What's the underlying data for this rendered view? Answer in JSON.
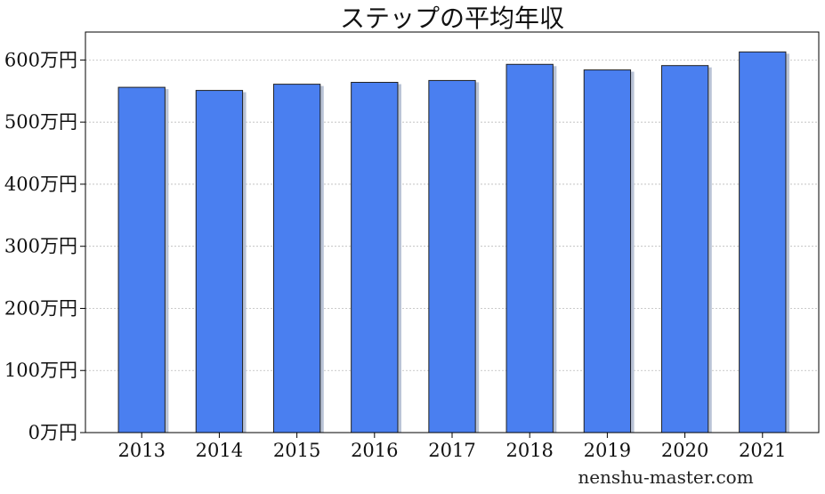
{
  "chart_data": {
    "type": "bar",
    "title": "ステップの平均年収",
    "categories": [
      "2013",
      "2014",
      "2015",
      "2016",
      "2017",
      "2018",
      "2019",
      "2020",
      "2021"
    ],
    "values": [
      556,
      551,
      561,
      564,
      567,
      593,
      584,
      591,
      613
    ],
    "unit": "万円",
    "ylim": [
      0,
      645
    ],
    "yticks": [
      0,
      100,
      200,
      300,
      400,
      500,
      600
    ],
    "ytick_labels": [
      "0万円",
      "100万円",
      "200万円",
      "300万円",
      "400万円",
      "500万円",
      "600万円"
    ],
    "grid": true,
    "bar_color": "#4a7ff0",
    "shadow_color": "#b9c3d6",
    "edge_color": "#222222"
  },
  "watermark": "nenshu-master.com"
}
